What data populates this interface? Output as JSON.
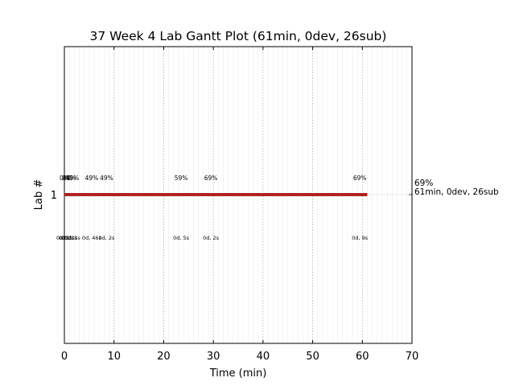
{
  "chart_data": {
    "type": "gantt",
    "title": "37 Week 4 Lab Gantt Plot (61min, 0dev, 26sub)",
    "xlabel": "Time (min)",
    "ylabel": "Lab #",
    "xlim": [
      0,
      70
    ],
    "x_ticks": [
      "0",
      "10",
      "20",
      "30",
      "40",
      "50",
      "60",
      "70"
    ],
    "x_tick_values": [
      0,
      10,
      20,
      30,
      40,
      50,
      60,
      70
    ],
    "y_categories": [
      "1"
    ],
    "grid": "vertical dotted",
    "bar": {
      "lab": "1",
      "start": 0,
      "end": 61,
      "color": "#b22222"
    },
    "end_annotation": {
      "percent": "69%",
      "summary": "61min, 0dev, 26sub",
      "color": "#b22222"
    },
    "submissions": [
      {
        "t": 0.0,
        "percent": "0%",
        "info": "0d, 0s"
      },
      {
        "t": 0.5,
        "percent": "0%",
        "info": "0d, 2s"
      },
      {
        "t": 1.0,
        "percent": "44%",
        "info": "0d, 1s"
      },
      {
        "t": 1.6,
        "percent": "49%",
        "info": "0d, 1s"
      },
      {
        "t": 5.5,
        "percent": "49%",
        "info": "0d, 46s"
      },
      {
        "t": 8.5,
        "percent": "49%",
        "info": "0d, 2s"
      },
      {
        "t": 23.5,
        "percent": "59%",
        "info": "0d, 5s"
      },
      {
        "t": 29.5,
        "percent": "69%",
        "info": "0d, 2s"
      },
      {
        "t": 59.5,
        "percent": "69%",
        "info": "0d, 9s"
      }
    ]
  }
}
